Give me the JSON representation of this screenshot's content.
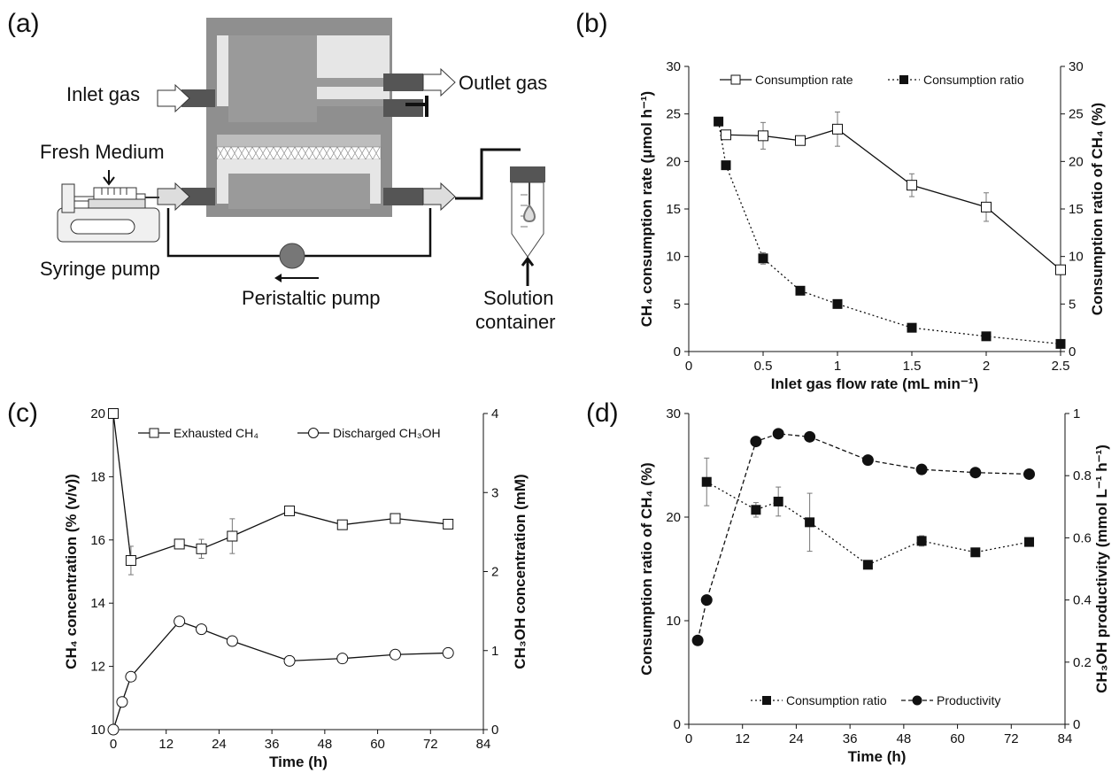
{
  "panels": {
    "a": "(a)",
    "b": "(b)",
    "c": "(c)",
    "d": "(d)"
  },
  "diagram": {
    "inlet": "Inlet gas",
    "outlet": "Outlet gas",
    "fresh_medium": "Fresh Medium",
    "syringe_pump": "Syringe pump",
    "peristaltic_pump": "Peristaltic pump",
    "solution_container_1": "Solution",
    "solution_container_2": "container"
  },
  "chart_data": [
    {
      "id": "b",
      "type": "line",
      "xlabel": "Inlet gas flow rate (mL min⁻¹)",
      "ylabel_left": "CH₄ consumption rate (μmol h⁻¹)",
      "ylabel_right": "Consumption ratio of CH₄ (%)",
      "xlim": [
        0,
        2.5
      ],
      "ylim_left": [
        0,
        30
      ],
      "ylim_right": [
        0,
        30
      ],
      "x_ticks": [
        "0",
        "0.5",
        "1",
        "1.5",
        "2",
        "2.5"
      ],
      "y_ticks_left": [
        "0",
        "5",
        "10",
        "15",
        "20",
        "25",
        "30"
      ],
      "y_ticks_right": [
        "0",
        "5",
        "10",
        "15",
        "20",
        "25",
        "30"
      ],
      "legend_position": "top",
      "series": [
        {
          "name": "Consumption rate",
          "axis": "left",
          "marker": "open-square",
          "line": "solid",
          "x": [
            0.25,
            0.5,
            0.75,
            1.0,
            1.5,
            2.0,
            2.5
          ],
          "values": [
            22.8,
            22.7,
            22.2,
            23.4,
            17.5,
            15.2,
            8.6
          ],
          "error": [
            0.4,
            1.4,
            0.4,
            1.8,
            1.2,
            1.5,
            0.5
          ]
        },
        {
          "name": "Consumption ratio",
          "axis": "right",
          "marker": "filled-square",
          "line": "dotted",
          "x": [
            0.2,
            0.25,
            0.5,
            0.75,
            1.0,
            1.5,
            2.0,
            2.5
          ],
          "values": [
            24.2,
            19.6,
            9.8,
            6.4,
            5.0,
            2.5,
            1.6,
            0.8
          ],
          "error": [
            0,
            0,
            0.6,
            0,
            0,
            0,
            0,
            0
          ]
        }
      ]
    },
    {
      "id": "c",
      "type": "line",
      "xlabel": "Time (h)",
      "ylabel_left": "CH₄ concentration (% (v/v))",
      "ylabel_right": "CH₃OH concentration (mM)",
      "xlim": [
        0,
        84
      ],
      "ylim_left": [
        10,
        20
      ],
      "ylim_right": [
        0,
        4
      ],
      "x_ticks": [
        "0",
        "12",
        "24",
        "36",
        "48",
        "60",
        "72",
        "84"
      ],
      "y_ticks_left": [
        "10",
        "12",
        "14",
        "16",
        "18",
        "20"
      ],
      "y_ticks_right": [
        "0",
        "1",
        "2",
        "3",
        "4"
      ],
      "legend_position": "top",
      "series": [
        {
          "name": "Exhausted CH₄",
          "axis": "left",
          "marker": "open-square",
          "line": "solid",
          "x": [
            0,
            4,
            15,
            20,
            27,
            40,
            52,
            64,
            76
          ],
          "values": [
            20.0,
            15.35,
            15.87,
            15.72,
            16.12,
            16.92,
            16.48,
            16.68,
            16.5
          ],
          "error": [
            0,
            0.45,
            0.15,
            0.3,
            0.55,
            0.1,
            0.1,
            0.1,
            0.1
          ]
        },
        {
          "name": "Discharged CH₃OH",
          "axis": "right",
          "marker": "open-circle",
          "line": "solid",
          "x": [
            0,
            2,
            4,
            15,
            20,
            27,
            40,
            52,
            64,
            76
          ],
          "values": [
            0.0,
            0.35,
            0.67,
            1.37,
            1.27,
            1.12,
            0.87,
            0.9,
            0.95,
            0.97
          ],
          "error": [
            0,
            0,
            0,
            0,
            0,
            0,
            0,
            0,
            0,
            0
          ]
        }
      ]
    },
    {
      "id": "d",
      "type": "line",
      "xlabel": "Time (h)",
      "ylabel_left": "Consumption ratio of CH₄ (%)",
      "ylabel_right": "CH₃OH productivity (mmol L⁻¹ h⁻¹)",
      "xlim": [
        0,
        84
      ],
      "ylim_left": [
        0,
        30
      ],
      "ylim_right": [
        0,
        1
      ],
      "x_ticks": [
        "0",
        "12",
        "24",
        "36",
        "48",
        "60",
        "72",
        "84"
      ],
      "y_ticks_left": [
        "0",
        "10",
        "20",
        "30"
      ],
      "y_ticks_right": [
        "0",
        "0.2",
        "0.4",
        "0.6",
        "0.8",
        "1"
      ],
      "legend_position": "bottom",
      "series": [
        {
          "name": "Consumption ratio",
          "axis": "left",
          "marker": "filled-square",
          "line": "dotted",
          "x": [
            4,
            15,
            20,
            27,
            40,
            52,
            64,
            76
          ],
          "values": [
            23.4,
            20.7,
            21.5,
            19.5,
            15.4,
            17.7,
            16.6,
            17.6
          ],
          "error": [
            2.3,
            0.7,
            1.4,
            2.8,
            0.3,
            0.5,
            0.2,
            0.2
          ]
        },
        {
          "name": "Productivity",
          "axis": "right",
          "marker": "filled-circle",
          "line": "dashed",
          "x": [
            2,
            4,
            15,
            20,
            27,
            40,
            52,
            64,
            76
          ],
          "values": [
            0.27,
            0.4,
            0.91,
            0.935,
            0.925,
            0.85,
            0.82,
            0.81,
            0.805
          ],
          "error": [
            0,
            0,
            0,
            0,
            0,
            0,
            0,
            0,
            0
          ]
        }
      ]
    }
  ]
}
